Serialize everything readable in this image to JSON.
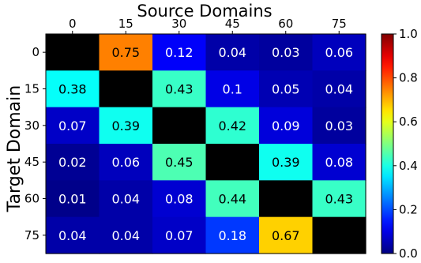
{
  "chart_data": {
    "type": "heatmap",
    "title": "",
    "xlabel": "Source Domains",
    "ylabel": "Target Domain",
    "x_categories": [
      "0",
      "15",
      "30",
      "45",
      "60",
      "75"
    ],
    "y_categories": [
      "0",
      "15",
      "30",
      "45",
      "60",
      "75"
    ],
    "x_axis_position": "top",
    "values": [
      [
        null,
        0.75,
        0.12,
        0.04,
        0.03,
        0.06
      ],
      [
        0.38,
        null,
        0.43,
        0.1,
        0.05,
        0.04
      ],
      [
        0.07,
        0.39,
        null,
        0.42,
        0.09,
        0.03
      ],
      [
        0.02,
        0.06,
        0.45,
        null,
        0.39,
        0.08
      ],
      [
        0.01,
        0.04,
        0.08,
        0.44,
        null,
        0.43
      ],
      [
        0.04,
        0.04,
        0.07,
        0.18,
        0.67,
        null
      ]
    ],
    "diagonal_fill": "#000000",
    "colormap": "jet",
    "vmin": 0.0,
    "vmax": 1.0,
    "colorbar_ticks": [
      "0.0",
      "0.2",
      "0.4",
      "0.6",
      "0.8",
      "1.0"
    ],
    "grid": false
  }
}
